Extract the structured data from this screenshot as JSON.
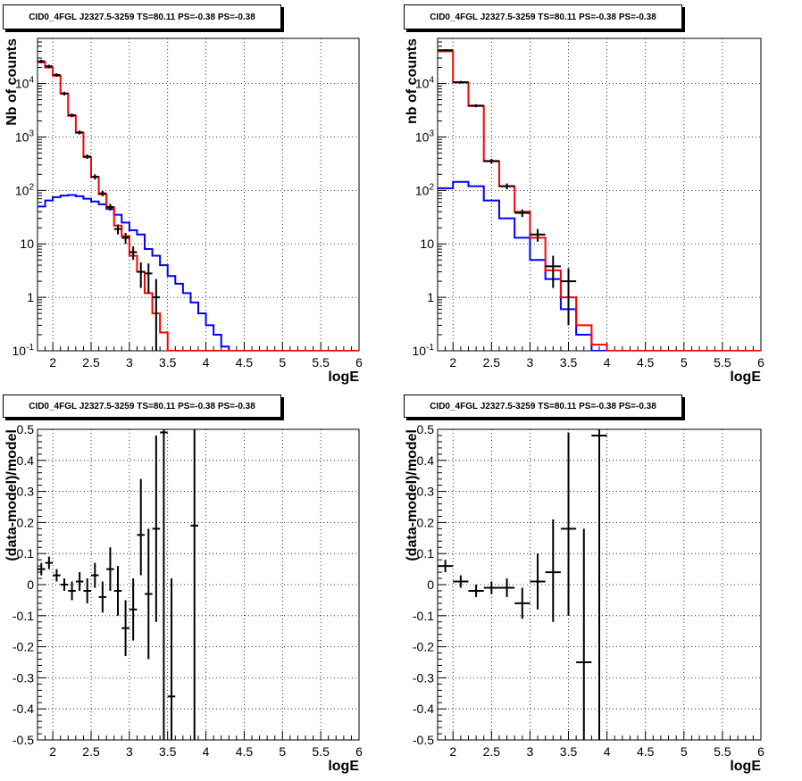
{
  "colors": {
    "data": "#000000",
    "total_model": "#ff0000",
    "source_model": "#0000ff",
    "grid": "#000000"
  },
  "chart_data": [
    {
      "type": "line",
      "title": "CID0_4FGL J2327.5-3259 TS=80.11 PS=-0.38 PS=-0.38",
      "xlabel": "logE",
      "ylabel": "Nb of counts",
      "xlim": [
        1.8,
        6.0
      ],
      "ylim": [
        0.1,
        70000
      ],
      "yscale": "log",
      "grid": true,
      "xticks": [
        "2",
        "2.5",
        "3",
        "3.5",
        "4",
        "4.5",
        "5",
        "5.5",
        "6"
      ],
      "yticks": [
        "10^-1",
        "1",
        "10",
        "10^2",
        "10^3",
        "10^4"
      ],
      "bin_edges": [
        1.8,
        1.9,
        2.0,
        2.1,
        2.2,
        2.3,
        2.4,
        2.5,
        2.6,
        2.7,
        2.8,
        2.9,
        3.0,
        3.1,
        3.2,
        3.3,
        3.4,
        3.5,
        3.6,
        3.7,
        3.8,
        3.9,
        4.0,
        4.1,
        4.2,
        4.3,
        4.4,
        4.5,
        4.6,
        4.7,
        4.8,
        4.9,
        5.0,
        5.1,
        5.2,
        5.3,
        5.4,
        5.5,
        5.6,
        5.7,
        5.8,
        5.9,
        6.0
      ],
      "series": [
        {
          "values": [
            25000,
            20000,
            14000,
            6500,
            2500,
            1200,
            420,
            180,
            85,
            48,
            22,
            14,
            6,
            3,
            1.2,
            0.5,
            0.22,
            0.1,
            0.1,
            0.1,
            0.1,
            0.1,
            0.1,
            0.1,
            0.1,
            0.1,
            0.1,
            0.1,
            0.1,
            0.1,
            0.1,
            0.1,
            0.1,
            0.1,
            0.1,
            0.1,
            0.1,
            0.1,
            0.1,
            0.1,
            0.1,
            0.1
          ]
        },
        {
          "values": [
            50,
            65,
            75,
            80,
            82,
            78,
            70,
            62,
            55,
            45,
            35,
            25,
            18,
            15,
            8,
            6,
            4,
            2.5,
            1.8,
            1.2,
            0.8,
            0.5,
            0.3,
            0.2,
            0.12,
            0.1,
            0.1,
            0.1,
            0.1,
            0.1,
            0.1,
            0.1,
            0.1,
            0.1,
            0.1,
            0.1,
            0.1,
            0.1,
            0.1,
            0.1,
            0.1,
            0.1
          ]
        },
        {
          "points": [
            {
              "x": 1.85,
              "y": 26000,
              "ylo": 24000,
              "yhi": 28000
            },
            {
              "x": 1.95,
              "y": 21000,
              "ylo": 19500,
              "yhi": 22500
            },
            {
              "x": 2.05,
              "y": 14500,
              "ylo": 13500,
              "yhi": 15500
            },
            {
              "x": 2.15,
              "y": 6500,
              "ylo": 6000,
              "yhi": 7000
            },
            {
              "x": 2.25,
              "y": 2550,
              "ylo": 2350,
              "yhi": 2750
            },
            {
              "x": 2.35,
              "y": 1220,
              "ylo": 1120,
              "yhi": 1320
            },
            {
              "x": 2.45,
              "y": 430,
              "ylo": 390,
              "yhi": 470
            },
            {
              "x": 2.55,
              "y": 180,
              "ylo": 160,
              "yhi": 200
            },
            {
              "x": 2.65,
              "y": 88,
              "ylo": 78,
              "yhi": 98
            },
            {
              "x": 2.75,
              "y": 49,
              "ylo": 42,
              "yhi": 56
            },
            {
              "x": 2.85,
              "y": 19,
              "ylo": 15,
              "yhi": 23
            },
            {
              "x": 2.95,
              "y": 13,
              "ylo": 10,
              "yhi": 16
            },
            {
              "x": 3.05,
              "y": 7,
              "ylo": 5,
              "yhi": 9
            },
            {
              "x": 3.15,
              "y": 3,
              "ylo": 1.5,
              "yhi": 4.5
            },
            {
              "x": 3.25,
              "y": 2.8,
              "ylo": 1.2,
              "yhi": 4.3
            },
            {
              "x": 3.35,
              "y": 1,
              "ylo": 0.1,
              "yhi": 2.2
            }
          ]
        }
      ]
    },
    {
      "type": "line",
      "title": "CID0_4FGL J2327.5-3259 TS=80.11 PS=-0.38 PS=-0.38",
      "xlabel": "logE",
      "ylabel": "nb of counts",
      "xlim": [
        1.8,
        6.0
      ],
      "ylim": [
        0.1,
        70000
      ],
      "yscale": "log",
      "grid": true,
      "xticks": [
        "2",
        "2.5",
        "3",
        "3.5",
        "4",
        "4.5",
        "5",
        "5.5",
        "6"
      ],
      "yticks": [
        "10^-1",
        "1",
        "10",
        "10^2",
        "10^3",
        "10^4"
      ],
      "bin_edges": [
        1.8,
        2.0,
        2.2,
        2.4,
        2.6,
        2.8,
        3.0,
        3.2,
        3.4,
        3.6,
        3.8,
        4.0,
        4.2,
        4.4,
        4.6,
        4.8,
        5.0,
        5.2,
        5.4,
        5.6,
        5.8,
        6.0
      ],
      "series": [
        {
          "values": [
            40000,
            10500,
            3800,
            350,
            120,
            40,
            13,
            3.2,
            1.0,
            0.3,
            0.13,
            0.1,
            0.1,
            0.1,
            0.1,
            0.1,
            0.1,
            0.1,
            0.1,
            0.1,
            0.1
          ]
        },
        {
          "values": [
            110,
            145,
            120,
            65,
            30,
            13,
            5,
            2.2,
            0.6,
            0.2,
            0.1,
            0.1,
            0.1,
            0.1,
            0.1,
            0.1,
            0.1,
            0.1,
            0.1,
            0.1,
            0.1
          ]
        },
        {
          "points": [
            {
              "x": 1.9,
              "y": 42000,
              "ylo": 40000,
              "yhi": 44000
            },
            {
              "x": 2.1,
              "y": 10600,
              "ylo": 10000,
              "yhi": 11200
            },
            {
              "x": 2.3,
              "y": 3850,
              "ylo": 3600,
              "yhi": 4100
            },
            {
              "x": 2.5,
              "y": 355,
              "ylo": 320,
              "yhi": 390
            },
            {
              "x": 2.7,
              "y": 120,
              "ylo": 105,
              "yhi": 135
            },
            {
              "x": 2.9,
              "y": 38,
              "ylo": 32,
              "yhi": 44
            },
            {
              "x": 3.1,
              "y": 15,
              "ylo": 11,
              "yhi": 19
            },
            {
              "x": 3.3,
              "y": 3.8,
              "ylo": 1.5,
              "yhi": 6
            },
            {
              "x": 3.5,
              "y": 2,
              "ylo": 0.3,
              "yhi": 3.5
            }
          ]
        }
      ]
    },
    {
      "type": "scatter",
      "title": "CID0_4FGL J2327.5-3259 TS=80.11 PS=-0.38 PS=-0.38",
      "xlabel": "logE",
      "ylabel": "(data-model)/model",
      "xlim": [
        1.8,
        6.0
      ],
      "ylim": [
        -0.5,
        0.5
      ],
      "grid": true,
      "xticks": [
        "2",
        "2.5",
        "3",
        "3.5",
        "4",
        "4.5",
        "5",
        "5.5",
        "6"
      ],
      "yticks": [
        "-0.5",
        "-0.4",
        "-0.3",
        "-0.2",
        "-0.1",
        "0",
        "0.1",
        "0.2",
        "0.3",
        "0.4",
        "0.5"
      ],
      "series": [
        {
          "points": [
            {
              "x": 1.85,
              "y": 0.05,
              "ylo": 0.03,
              "yhi": 0.07
            },
            {
              "x": 1.95,
              "y": 0.07,
              "ylo": 0.05,
              "yhi": 0.09
            },
            {
              "x": 2.05,
              "y": 0.03,
              "ylo": 0.01,
              "yhi": 0.05
            },
            {
              "x": 2.15,
              "y": 0.0,
              "ylo": -0.02,
              "yhi": 0.02
            },
            {
              "x": 2.25,
              "y": -0.02,
              "ylo": -0.05,
              "yhi": 0.01
            },
            {
              "x": 2.35,
              "y": 0.01,
              "ylo": -0.02,
              "yhi": 0.04
            },
            {
              "x": 2.45,
              "y": -0.02,
              "ylo": -0.06,
              "yhi": 0.02
            },
            {
              "x": 2.55,
              "y": 0.03,
              "ylo": -0.01,
              "yhi": 0.07
            },
            {
              "x": 2.65,
              "y": -0.04,
              "ylo": -0.09,
              "yhi": 0.01
            },
            {
              "x": 2.75,
              "y": 0.05,
              "ylo": -0.02,
              "yhi": 0.12
            },
            {
              "x": 2.85,
              "y": -0.02,
              "ylo": -0.1,
              "yhi": 0.06
            },
            {
              "x": 2.95,
              "y": -0.14,
              "ylo": -0.23,
              "yhi": -0.05
            },
            {
              "x": 3.05,
              "y": -0.08,
              "ylo": -0.18,
              "yhi": 0.02
            },
            {
              "x": 3.15,
              "y": 0.16,
              "ylo": 0.03,
              "yhi": 0.34
            },
            {
              "x": 3.25,
              "y": -0.03,
              "ylo": -0.24,
              "yhi": 0.18
            },
            {
              "x": 3.35,
              "y": 0.18,
              "ylo": -0.12,
              "yhi": 0.48
            },
            {
              "x": 3.45,
              "y": 0.49,
              "ylo": -0.5,
              "yhi": 0.5
            },
            {
              "x": 3.55,
              "y": -0.36,
              "ylo": -0.5,
              "yhi": 0.02
            },
            {
              "x": 3.85,
              "y": 0.19,
              "ylo": -0.5,
              "yhi": 0.5
            }
          ]
        }
      ]
    },
    {
      "type": "scatter",
      "title": "CID0_4FGL J2327.5-3259 TS=80.11 PS=-0.38 PS=-0.38",
      "xlabel": "logE",
      "ylabel": "(data-model)/model",
      "xlim": [
        1.8,
        6.0
      ],
      "ylim": [
        -0.5,
        0.5
      ],
      "grid": true,
      "xticks": [
        "2",
        "2.5",
        "3",
        "3.5",
        "4",
        "4.5",
        "5",
        "5.5",
        "6"
      ],
      "yticks": [
        "-0.5",
        "-0.4",
        "-0.3",
        "-0.2",
        "-0.1",
        "0",
        "0.1",
        "0.2",
        "0.3",
        "0.4",
        "0.5"
      ],
      "series": [
        {
          "points": [
            {
              "x": 1.9,
              "y": 0.06,
              "ylo": 0.04,
              "yhi": 0.08
            },
            {
              "x": 2.1,
              "y": 0.01,
              "ylo": -0.01,
              "yhi": 0.03
            },
            {
              "x": 2.3,
              "y": -0.02,
              "ylo": -0.04,
              "yhi": 0.0
            },
            {
              "x": 2.5,
              "y": -0.01,
              "ylo": -0.03,
              "yhi": 0.01
            },
            {
              "x": 2.7,
              "y": -0.01,
              "ylo": -0.04,
              "yhi": 0.02
            },
            {
              "x": 2.9,
              "y": -0.06,
              "ylo": -0.11,
              "yhi": -0.01
            },
            {
              "x": 3.1,
              "y": 0.01,
              "ylo": -0.08,
              "yhi": 0.1
            },
            {
              "x": 3.3,
              "y": 0.04,
              "ylo": -0.12,
              "yhi": 0.21
            },
            {
              "x": 3.5,
              "y": 0.18,
              "ylo": -0.1,
              "yhi": 0.49
            },
            {
              "x": 3.7,
              "y": -0.25,
              "ylo": -0.5,
              "yhi": 0.18
            },
            {
              "x": 3.9,
              "y": 0.48,
              "ylo": -0.5,
              "yhi": 0.5
            }
          ]
        }
      ]
    }
  ]
}
